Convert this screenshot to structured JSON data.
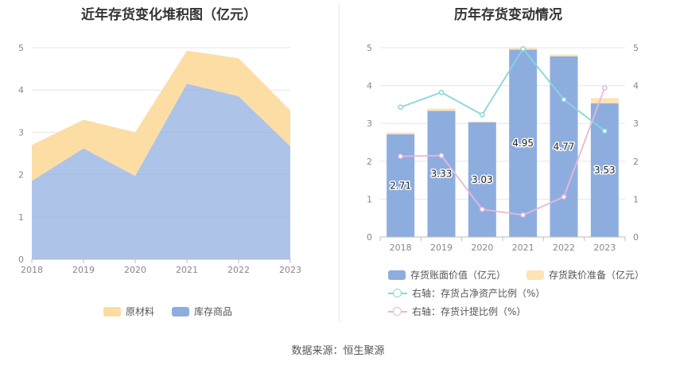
{
  "source_text": "数据来源：恒生聚源",
  "chart_data": [
    {
      "type": "area",
      "stacked": true,
      "title": "近年存货变化堆积图（亿元）",
      "categories": [
        "2018",
        "2019",
        "2020",
        "2021",
        "2022",
        "2023"
      ],
      "y_ticks": [
        "0",
        "1",
        "2",
        "3",
        "4",
        "5"
      ],
      "ylim": [
        0,
        5.5
      ],
      "series": [
        {
          "name": "库存商品",
          "color": "#8eaddf",
          "values": [
            1.85,
            2.62,
            1.97,
            4.15,
            3.85,
            2.67
          ]
        },
        {
          "name": "原材料",
          "color": "#fcdca0",
          "values": [
            0.85,
            0.68,
            1.03,
            0.78,
            0.9,
            0.85
          ]
        }
      ],
      "legend": [
        "原材料",
        "库存商品"
      ],
      "legend_position": "bottom",
      "grid": true
    },
    {
      "type": "bar+line",
      "title": "历年存货变动情况",
      "categories": [
        "2018",
        "2019",
        "2020",
        "2021",
        "2022",
        "2023"
      ],
      "y_ticks": [
        "0",
        "1",
        "2",
        "3",
        "4",
        "5"
      ],
      "ylim": [
        0,
        5
      ],
      "y2_ticks": [
        "0",
        "1",
        "2",
        "3",
        "4",
        "5"
      ],
      "y2lim": [
        0,
        5
      ],
      "bar_series": [
        {
          "name": "存货账面价值（亿元）",
          "color": "#8eaddf",
          "values": [
            2.71,
            3.33,
            3.03,
            4.95,
            4.77,
            3.53
          ],
          "labels": [
            "2.71",
            "3.33",
            "3.03",
            "4.95",
            "4.77",
            "3.53"
          ]
        },
        {
          "name": "存货跌价准备（亿元）",
          "color": "#fde3b6",
          "values": [
            0.05,
            0.06,
            0.02,
            0.04,
            0.05,
            0.14
          ]
        }
      ],
      "line_series": [
        {
          "name": "右轴：存货占净资产比例（%）",
          "color": "#86d6dc",
          "values": [
            3.43,
            3.82,
            3.23,
            4.97,
            3.63,
            2.8
          ]
        },
        {
          "name": "右轴：存货计提比例（%）",
          "color": "#e6b8dc",
          "values": [
            2.13,
            2.15,
            0.73,
            0.58,
            1.06,
            3.94
          ]
        }
      ],
      "legend_position": "bottom",
      "grid": true
    }
  ]
}
